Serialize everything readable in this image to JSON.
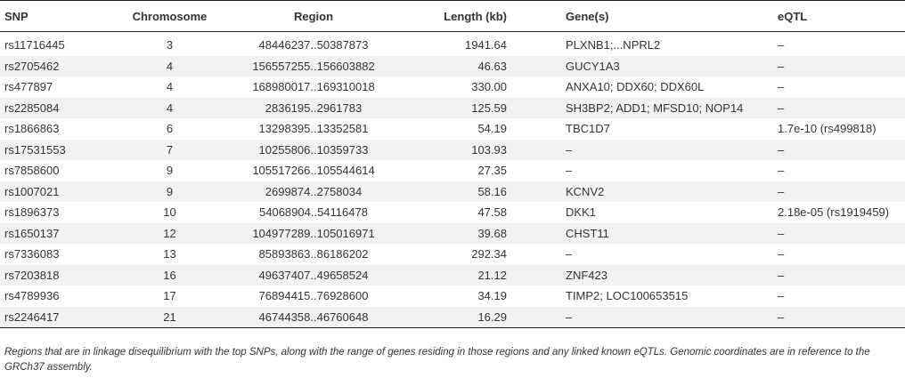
{
  "table": {
    "headers": {
      "snp": "SNP",
      "chromosome": "Chromosome",
      "region": "Region",
      "length": "Length (kb)",
      "genes": "Gene(s)",
      "eqtl": "eQTL"
    },
    "rows": [
      {
        "snp": "rs11716445",
        "chromosome": "3",
        "region": "48446237..50387873",
        "length": "1941.64",
        "genes": "PLXNB1;...NPRL2",
        "eqtl": "–"
      },
      {
        "snp": "rs2705462",
        "chromosome": "4",
        "region": "156557255..156603882",
        "length": "46.63",
        "genes": "GUCY1A3",
        "eqtl": "–"
      },
      {
        "snp": "rs477897",
        "chromosome": "4",
        "region": "168980017..169310018",
        "length": "330.00",
        "genes": "ANXA10; DDX60; DDX60L",
        "eqtl": "–"
      },
      {
        "snp": "rs2285084",
        "chromosome": "4",
        "region": "2836195..2961783",
        "length": "125.59",
        "genes": "SH3BP2; ADD1; MFSD10; NOP14",
        "eqtl": "–"
      },
      {
        "snp": "rs1866863",
        "chromosome": "6",
        "region": "13298395..13352581",
        "length": "54.19",
        "genes": "TBC1D7",
        "eqtl": "1.7e-10 (rs499818)"
      },
      {
        "snp": "rs17531553",
        "chromosome": "7",
        "region": "10255806..10359733",
        "length": "103.93",
        "genes": "–",
        "eqtl": "–"
      },
      {
        "snp": "rs7858600",
        "chromosome": "9",
        "region": "105517266..105544614",
        "length": "27.35",
        "genes": "–",
        "eqtl": "–"
      },
      {
        "snp": "rs1007021",
        "chromosome": "9",
        "region": "2699874..2758034",
        "length": "58.16",
        "genes": "KCNV2",
        "eqtl": "–"
      },
      {
        "snp": "rs1896373",
        "chromosome": "10",
        "region": "54068904..54116478",
        "length": "47.58",
        "genes": "DKK1",
        "eqtl": "2.18e-05 (rs1919459)"
      },
      {
        "snp": "rs1650137",
        "chromosome": "12",
        "region": "104977289..105016971",
        "length": "39.68",
        "genes": "CHST11",
        "eqtl": "–"
      },
      {
        "snp": "rs7336083",
        "chromosome": "13",
        "region": "85893863..86186202",
        "length": "292.34",
        "genes": "–",
        "eqtl": "–"
      },
      {
        "snp": "rs7203818",
        "chromosome": "16",
        "region": "49637407..49658524",
        "length": "21.12",
        "genes": "ZNF423",
        "eqtl": "–"
      },
      {
        "snp": "rs4789936",
        "chromosome": "17",
        "region": "76894415..76928600",
        "length": "34.19",
        "genes": "TIMP2; LOC100653515",
        "eqtl": "–"
      },
      {
        "snp": "rs2246417",
        "chromosome": "21",
        "region": "46744358..46760648",
        "length": "16.29",
        "genes": "–",
        "eqtl": "–"
      }
    ]
  },
  "footnote": "Regions that are in linkage disequilibrium with the top SNPs, along with the range of genes residing in those regions and any linked known eQTLs. Genomic coordinates are in reference to the GRCh37 assembly."
}
